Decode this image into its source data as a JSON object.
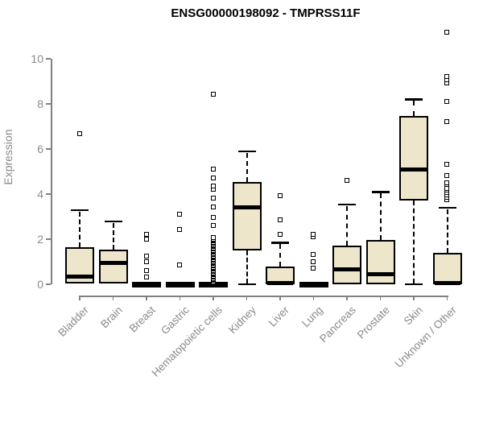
{
  "title": "ENSG00000198092 - TMPRSS11F",
  "chart_data": {
    "type": "boxplot",
    "title": "ENSG00000198092 - TMPRSS11F",
    "xlabel": "",
    "ylabel": "Expression",
    "ylim": [
      0,
      11.3
    ],
    "yticks": [
      0,
      2,
      4,
      6,
      8,
      10
    ],
    "grid": false,
    "legend": "none",
    "box_fill_color": "#EDE6CB",
    "box_border_color": "#000000",
    "axis_color": "#808080",
    "axis_text_color": "#8a8a8a",
    "categories": [
      "Bladder",
      "Brain",
      "Breast",
      "Gastric",
      "Hematopoietic cells",
      "Kidney",
      "Liver",
      "Lung",
      "Pancreas",
      "Prostate",
      "Skin",
      "Unknown / Other"
    ],
    "series": [
      {
        "name": "Bladder",
        "whisker_low": 0,
        "q1": 0.05,
        "median": 0.35,
        "q3": 1.65,
        "whisker_high": 3.3,
        "outliers": [
          6.65
        ]
      },
      {
        "name": "Brain",
        "whisker_low": 0,
        "q1": 0.05,
        "median": 0.95,
        "q3": 1.55,
        "whisker_high": 2.8,
        "outliers": []
      },
      {
        "name": "Breast",
        "whisker_low": 0,
        "q1": 0,
        "median": 0,
        "q3": 0,
        "whisker_high": 0,
        "outliers": [
          0.3,
          0.6,
          1.0,
          1.25,
          2.0,
          2.2
        ]
      },
      {
        "name": "Gastric",
        "whisker_low": 0,
        "q1": 0,
        "median": 0,
        "q3": 0,
        "whisker_high": 0,
        "outliers": [
          0.85,
          2.4,
          3.1
        ]
      },
      {
        "name": "Hematopoietic cells",
        "whisker_low": 0,
        "q1": 0,
        "median": 0,
        "q3": 0,
        "whisker_high": 0,
        "outliers": [
          0.1,
          0.15,
          0.2,
          0.25,
          0.3,
          0.35,
          0.4,
          0.45,
          0.5,
          0.55,
          0.6,
          0.65,
          0.7,
          0.75,
          0.8,
          0.85,
          0.9,
          0.95,
          1.0,
          1.05,
          1.1,
          1.15,
          1.2,
          1.25,
          1.3,
          1.35,
          1.4,
          1.45,
          1.5,
          1.55,
          1.6,
          1.65,
          1.7,
          1.75,
          1.8,
          1.85,
          1.9,
          1.95,
          2.0,
          2.05,
          2.6,
          2.95,
          3.4,
          3.8,
          4.2,
          4.35,
          4.7,
          5.1,
          8.4
        ]
      },
      {
        "name": "Kidney",
        "whisker_low": 0,
        "q1": 1.5,
        "median": 3.4,
        "q3": 4.55,
        "whisker_high": 5.9,
        "outliers": []
      },
      {
        "name": "Liver",
        "whisker_low": 0,
        "q1": 0,
        "median": 0.05,
        "q3": 0.8,
        "whisker_high": 1.85,
        "outliers": [
          2.2,
          2.85,
          3.9
        ]
      },
      {
        "name": "Lung",
        "whisker_low": 0,
        "q1": 0,
        "median": 0,
        "q3": 0,
        "whisker_high": 0,
        "outliers": [
          0.7,
          1.0,
          1.3,
          2.1,
          2.2
        ]
      },
      {
        "name": "Pancreas",
        "whisker_low": 0,
        "q1": 0,
        "median": 0.65,
        "q3": 1.7,
        "whisker_high": 3.55,
        "outliers": [
          4.6
        ]
      },
      {
        "name": "Prostate",
        "whisker_low": 0,
        "q1": 0,
        "median": 0.45,
        "q3": 1.95,
        "whisker_high": 4.1,
        "outliers": []
      },
      {
        "name": "Skin",
        "whisker_low": 0,
        "q1": 3.7,
        "median": 5.1,
        "q3": 7.45,
        "whisker_high": 8.2,
        "outliers": []
      },
      {
        "name": "Unknown / Other",
        "whisker_low": 0,
        "q1": 0,
        "median": 0.05,
        "q3": 1.4,
        "whisker_high": 3.4,
        "outliers": [
          3.75,
          3.85,
          3.95,
          4.05,
          4.15,
          4.25,
          4.4,
          4.5,
          4.8,
          5.3,
          7.2,
          8.1,
          8.9,
          9.05,
          9.2,
          11.15
        ]
      }
    ]
  }
}
